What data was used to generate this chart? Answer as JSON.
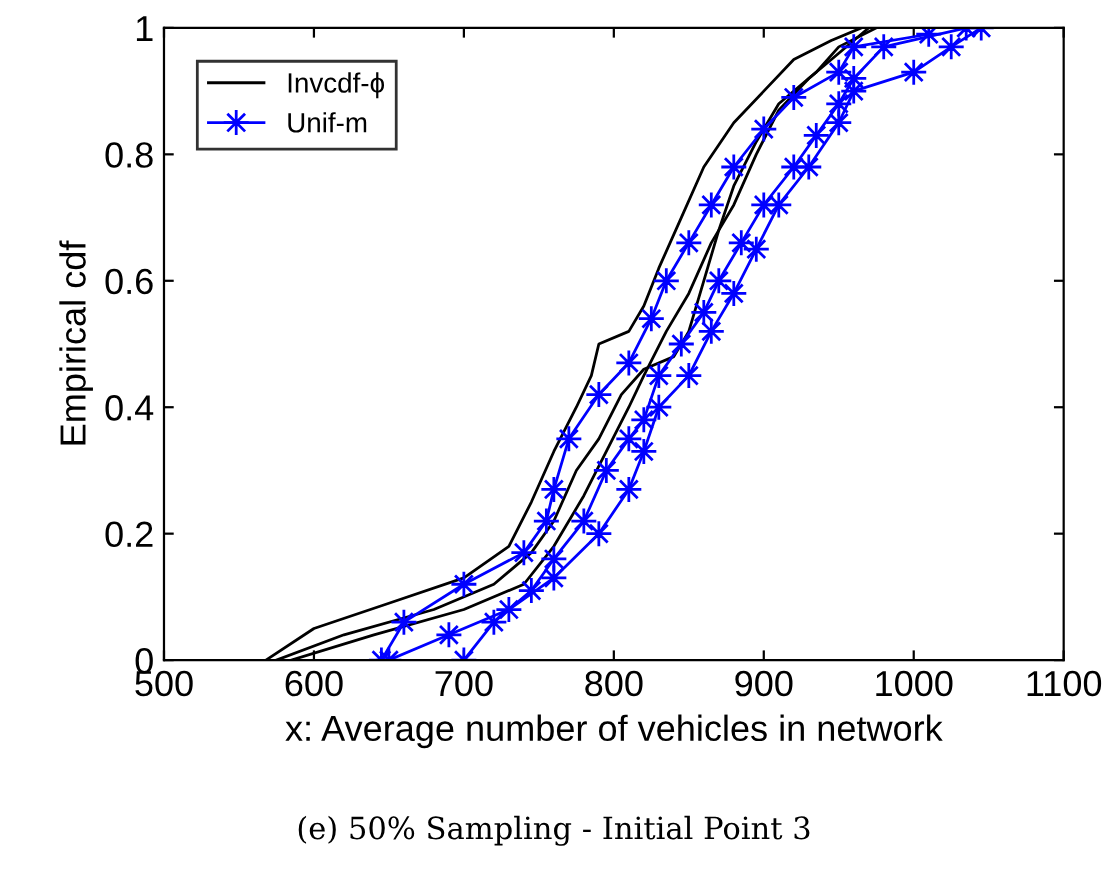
{
  "chart_data": {
    "type": "line",
    "xlabel": "x: Average number of vehicles in network",
    "ylabel": "Empirical cdf",
    "annotations": [
      "(e) 50% Sampling - Initial Point 3"
    ],
    "xlim": [
      500,
      1100
    ],
    "xticks": [
      500,
      600,
      700,
      800,
      900,
      1000,
      1100
    ],
    "ylim": [
      0,
      1
    ],
    "yticks": [
      0,
      {
        "value": 0.2,
        "label": "0.2"
      },
      {
        "value": 0.4,
        "label": "0.4"
      },
      {
        "value": 0.6,
        "label": "0.6"
      },
      {
        "value": 0.8,
        "label": "0.8"
      },
      1
    ],
    "grid": false,
    "legend": "top left",
    "line_style": "solid",
    "series": [
      {
        "name": "Invcdf-ϕ",
        "color": "#000000",
        "marker": "none",
        "x": [
          568,
          600,
          650,
          700,
          730,
          745,
          760,
          775,
          785,
          790,
          810,
          820,
          830,
          845,
          860,
          880,
          900,
          920,
          945,
          965
        ],
        "values": [
          0,
          0.05,
          0.09,
          0.13,
          0.18,
          0.25,
          0.33,
          0.4,
          0.45,
          0.5,
          0.52,
          0.56,
          0.62,
          0.7,
          0.78,
          0.85,
          0.9,
          0.95,
          0.98,
          1.0
        ]
      },
      {
        "color": "#000000",
        "marker": "none",
        "x": [
          575,
          620,
          680,
          720,
          745,
          760,
          775,
          790,
          805,
          820,
          840,
          850,
          860,
          870,
          880,
          895,
          910,
          935,
          950,
          975
        ],
        "values": [
          0,
          0.04,
          0.08,
          0.12,
          0.17,
          0.22,
          0.3,
          0.35,
          0.42,
          0.46,
          0.48,
          0.52,
          0.6,
          0.68,
          0.75,
          0.82,
          0.88,
          0.93,
          0.97,
          1.0
        ]
      },
      {
        "color": "#000000",
        "marker": "none",
        "x": [
          585,
          640,
          700,
          740,
          760,
          780,
          795,
          810,
          820,
          835,
          850,
          865,
          880,
          895,
          910,
          930,
          950,
          970
        ],
        "values": [
          0,
          0.04,
          0.08,
          0.12,
          0.18,
          0.26,
          0.33,
          0.4,
          0.45,
          0.52,
          0.58,
          0.66,
          0.72,
          0.8,
          0.87,
          0.92,
          0.96,
          1.0
        ]
      },
      {
        "name": "Unif-m",
        "color": "#0000ff",
        "marker": "star",
        "x": [
          645,
          660,
          700,
          740,
          755,
          760,
          770,
          790,
          810,
          825,
          835,
          850,
          865,
          880,
          900,
          920,
          950,
          960,
          1010
        ],
        "values": [
          0,
          0.06,
          0.12,
          0.17,
          0.22,
          0.27,
          0.35,
          0.42,
          0.47,
          0.54,
          0.6,
          0.66,
          0.72,
          0.78,
          0.84,
          0.89,
          0.93,
          0.97,
          0.99
        ]
      },
      {
        "color": "#0000ff",
        "marker": "star",
        "x": [
          700,
          720,
          745,
          760,
          780,
          795,
          810,
          820,
          830,
          845,
          860,
          870,
          885,
          900,
          920,
          935,
          950,
          960,
          980,
          1035
        ],
        "values": [
          0,
          0.06,
          0.11,
          0.16,
          0.22,
          0.3,
          0.35,
          0.38,
          0.45,
          0.5,
          0.55,
          0.6,
          0.66,
          0.72,
          0.78,
          0.83,
          0.88,
          0.92,
          0.97,
          1.0
        ]
      },
      {
        "color": "#0000ff",
        "marker": "star",
        "x": [
          650,
          690,
          730,
          760,
          790,
          810,
          820,
          830,
          850,
          865,
          880,
          895,
          910,
          930,
          950,
          960,
          1000,
          1025,
          1045
        ],
        "values": [
          0,
          0.04,
          0.08,
          0.13,
          0.2,
          0.27,
          0.33,
          0.4,
          0.45,
          0.52,
          0.58,
          0.65,
          0.72,
          0.78,
          0.85,
          0.9,
          0.93,
          0.97,
          1.0
        ]
      }
    ]
  }
}
